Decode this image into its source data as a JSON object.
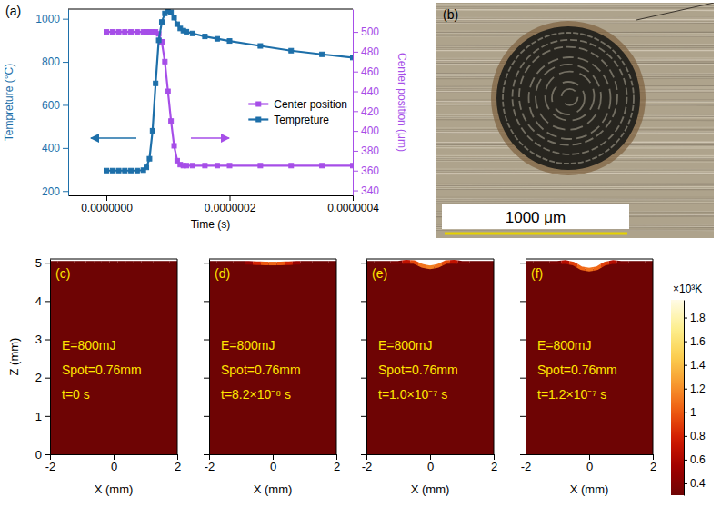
{
  "chart_data": [
    {
      "type": "line",
      "letter": "(a)",
      "x_label": "Time (s)",
      "y_label": "Tempreture (°C)",
      "y2_label": "Center position (μm)",
      "x": [
        0,
        1e-08,
        2e-08,
        3e-08,
        4e-08,
        5e-08,
        6e-08,
        6.5e-08,
        7e-08,
        7.5e-08,
        8e-08,
        8.5e-08,
        9e-08,
        9.5e-08,
        1e-07,
        1.05e-07,
        1.1e-07,
        1.15e-07,
        1.2e-07,
        1.25e-07,
        1.3e-07,
        1.4e-07,
        1.6e-07,
        1.8e-07,
        2e-07,
        2.5e-07,
        3e-07,
        3.5e-07,
        4e-07
      ],
      "series": [
        {
          "name": "Center position",
          "color": "#a64ee8",
          "axis": "y2",
          "marker": "square",
          "values": [
            500,
            500,
            500,
            500,
            500,
            500,
            500,
            500,
            500,
            500,
            500,
            498,
            490,
            470,
            440,
            410,
            385,
            370,
            366,
            365,
            365,
            365,
            365,
            365,
            365,
            365,
            365,
            365,
            365
          ]
        },
        {
          "name": "Tempreture",
          "color": "#1d6fa9",
          "marker": "square",
          "values": [
            295,
            295,
            295,
            295,
            295,
            295,
            297,
            310,
            350,
            480,
            700,
            900,
            985,
            1025,
            1035,
            1030,
            1005,
            975,
            955,
            945,
            940,
            932,
            918,
            907,
            897,
            874,
            852,
            835,
            820
          ]
        }
      ],
      "xlim": [
        -6.2e-08,
        4e-07
      ],
      "xticks": [
        {
          "value": 0,
          "label": "0.0000000"
        },
        {
          "value": 2e-07,
          "label": "0.0000002"
        },
        {
          "value": 4e-07,
          "label": "0.0000004"
        }
      ],
      "ylim": [
        180,
        1045
      ],
      "yticks": [
        200,
        400,
        600,
        800,
        1000
      ],
      "y2lim": [
        335,
        523
      ],
      "y2ticks": [
        340,
        360,
        380,
        400,
        420,
        440,
        460,
        480,
        500
      ],
      "legend": "right"
    },
    {
      "type": "area",
      "letter": "(c)",
      "x_label": "X (mm)",
      "y_label": "Z (mm)",
      "annotations": [
        "E=800mJ",
        "Spot=0.76mm",
        "t=0 s"
      ],
      "x": [
        -2,
        -1.5,
        -1,
        -0.75,
        -0.5,
        -0.25,
        0,
        0.25,
        0.5,
        0.75,
        1,
        1.5,
        2
      ],
      "values": [
        5,
        5,
        5,
        5,
        5,
        5,
        5,
        5,
        5,
        5,
        5,
        5,
        5
      ],
      "surface_temperature": [
        0.3,
        0.3,
        0.3,
        0.3,
        0.3,
        0.3,
        0.3,
        0.3,
        0.3,
        0.3,
        0.3,
        0.3,
        0.3
      ],
      "body_temperature": 0.3,
      "xlim": [
        -2,
        2
      ],
      "xticks": [
        -2,
        0,
        2
      ],
      "ylim": [
        0,
        5.1
      ],
      "yticks": [
        0,
        1,
        2,
        3,
        4,
        5
      ]
    },
    {
      "type": "area",
      "letter": "(d)",
      "x_label": "X (mm)",
      "annotations": [
        "E=800mJ",
        "Spot=0.76mm",
        "t=8.2×10⁻⁸ s"
      ],
      "x": [
        -2,
        -1.5,
        -1,
        -0.75,
        -0.5,
        -0.25,
        0,
        0.25,
        0.5,
        0.75,
        1,
        1.5,
        2
      ],
      "values": [
        5,
        5,
        5,
        5,
        4.99,
        4.98,
        4.98,
        4.98,
        4.99,
        5,
        5,
        5,
        5
      ],
      "surface_temperature": [
        0.3,
        0.3,
        0.32,
        0.5,
        0.8,
        1.0,
        1.05,
        1.0,
        0.8,
        0.5,
        0.32,
        0.3,
        0.3
      ],
      "body_temperature": 0.3,
      "xlim": [
        -2,
        2
      ],
      "xticks": [
        -2,
        0,
        2
      ],
      "ylim": [
        0,
        5.1
      ],
      "yticks": [
        0,
        1,
        2,
        3,
        4,
        5
      ],
      "tick_labels": "x"
    },
    {
      "type": "area",
      "letter": "(e)",
      "x_label": "X (mm)",
      "annotations": [
        "E=800mJ",
        "Spot=0.76mm",
        "t=1.0×10⁻⁷ s"
      ],
      "x": [
        -2,
        -1.5,
        -1,
        -0.75,
        -0.5,
        -0.25,
        0,
        0.25,
        0.5,
        0.75,
        1,
        1.5,
        2
      ],
      "values": [
        5,
        5,
        5,
        5.03,
        5.02,
        4.92,
        4.88,
        4.92,
        5.02,
        5.03,
        5,
        5,
        5
      ],
      "surface_temperature": [
        0.3,
        0.3,
        0.35,
        0.7,
        0.95,
        1.1,
        1.15,
        1.1,
        0.95,
        0.7,
        0.35,
        0.3,
        0.3
      ],
      "body_temperature": 0.3,
      "xlim": [
        -2,
        2
      ],
      "xticks": [
        -2,
        0,
        2
      ],
      "ylim": [
        0,
        5.1
      ],
      "yticks": [
        0,
        1,
        2,
        3,
        4,
        5
      ],
      "tick_labels": "x"
    },
    {
      "type": "area",
      "letter": "(f)",
      "x_label": "X (mm)",
      "annotations": [
        "E=800mJ",
        "Spot=0.76mm",
        "t=1.2×10⁻⁷ s"
      ],
      "x": [
        -2,
        -1.5,
        -1,
        -0.75,
        -0.5,
        -0.25,
        0,
        0.25,
        0.5,
        0.75,
        1,
        1.5,
        2
      ],
      "values": [
        5,
        5,
        5,
        5.02,
        4.98,
        4.86,
        4.82,
        4.86,
        4.98,
        5.02,
        5,
        5,
        5
      ],
      "surface_temperature": [
        0.3,
        0.3,
        0.35,
        0.65,
        0.9,
        1.05,
        1.1,
        1.05,
        0.9,
        0.65,
        0.35,
        0.3,
        0.3
      ],
      "body_temperature": 0.3,
      "xlim": [
        -2,
        2
      ],
      "xticks": [
        -2,
        0,
        2
      ],
      "ylim": [
        0,
        5.1
      ],
      "yticks": [
        0,
        1,
        2,
        3,
        4,
        5
      ],
      "tick_labels": "x"
    }
  ],
  "colorbar": {
    "title": "×10³K",
    "range": [
      0.3,
      1.95
    ],
    "ticks": [
      0.4,
      0.6,
      0.8,
      1,
      1.2,
      1.4,
      1.6,
      1.8
    ]
  },
  "photo": {
    "letter": "(b)",
    "scale_bar_label": "1000 μm"
  }
}
